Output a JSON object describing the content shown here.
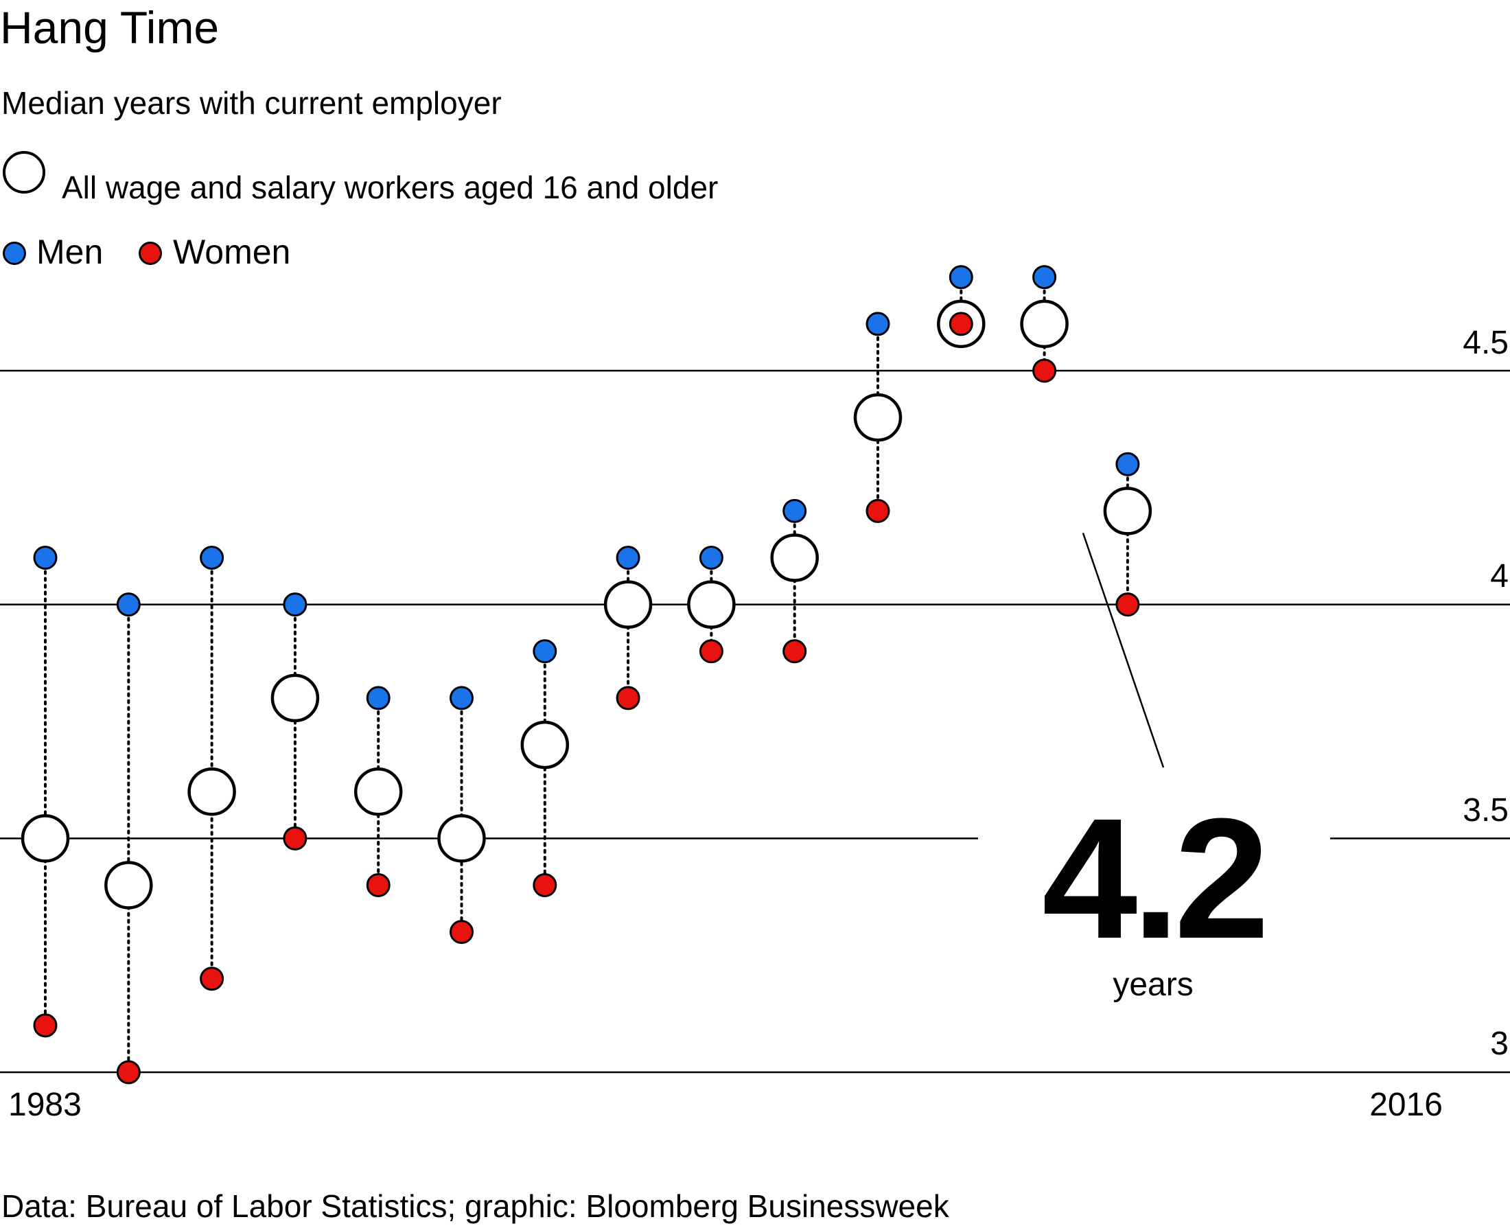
{
  "title": "Hang Time",
  "subtitle": "Median years with current employer",
  "legend": {
    "all_label": "All wage and salary workers aged 16 and older",
    "men_label": "Men",
    "women_label": "Women"
  },
  "colors": {
    "men": "#1a73e8",
    "women": "#e8130f",
    "all_fill": "#ffffff",
    "stroke": "#000000"
  },
  "x_axis": {
    "start_label": "1983",
    "end_label": "2016"
  },
  "y_ticks": [
    {
      "value": 3,
      "label": "3"
    },
    {
      "value": 3.5,
      "label": "3.5"
    },
    {
      "value": 4,
      "label": "4"
    },
    {
      "value": 4.5,
      "label": "4.5"
    }
  ],
  "highlight": {
    "value": "4.2",
    "unit": "years"
  },
  "source": "Data: Bureau of Labor Statistics; graphic: Bloomberg Businessweek",
  "chart_data": {
    "type": "scatter",
    "title": "Hang Time",
    "subtitle": "Median years with current employer",
    "xlabel": "",
    "ylabel": "Median years with current employer",
    "ylim": [
      3,
      4.5
    ],
    "grid": true,
    "x_range": [
      1983,
      2016
    ],
    "series_names": [
      "All wage and salary workers aged 16 and older",
      "Men",
      "Women"
    ],
    "points": [
      {
        "all": 3.5,
        "men": 4.1,
        "women": 3.1
      },
      {
        "all": 3.4,
        "men": 4.0,
        "women": 3.0
      },
      {
        "all": 3.6,
        "men": 4.1,
        "women": 3.2
      },
      {
        "all": 3.8,
        "men": 4.0,
        "women": 3.5
      },
      {
        "all": 3.6,
        "men": 3.8,
        "women": 3.4
      },
      {
        "all": 3.5,
        "men": 3.8,
        "women": 3.3
      },
      {
        "all": 3.7,
        "men": 3.9,
        "women": 3.4
      },
      {
        "all": 4.0,
        "men": 4.1,
        "women": 3.8
      },
      {
        "all": 4.0,
        "men": 4.1,
        "women": 3.9
      },
      {
        "all": 4.1,
        "men": 4.2,
        "women": 3.9
      },
      {
        "all": 4.4,
        "men": 4.6,
        "women": 4.2
      },
      {
        "all": 4.6,
        "men": 4.7,
        "women": 4.6
      },
      {
        "all": 4.6,
        "men": 4.7,
        "women": 4.5
      },
      {
        "all": 4.2,
        "men": 4.3,
        "women": 4.0
      }
    ],
    "annotation": {
      "value": "4.2",
      "unit": "years",
      "points_to": "last"
    }
  }
}
